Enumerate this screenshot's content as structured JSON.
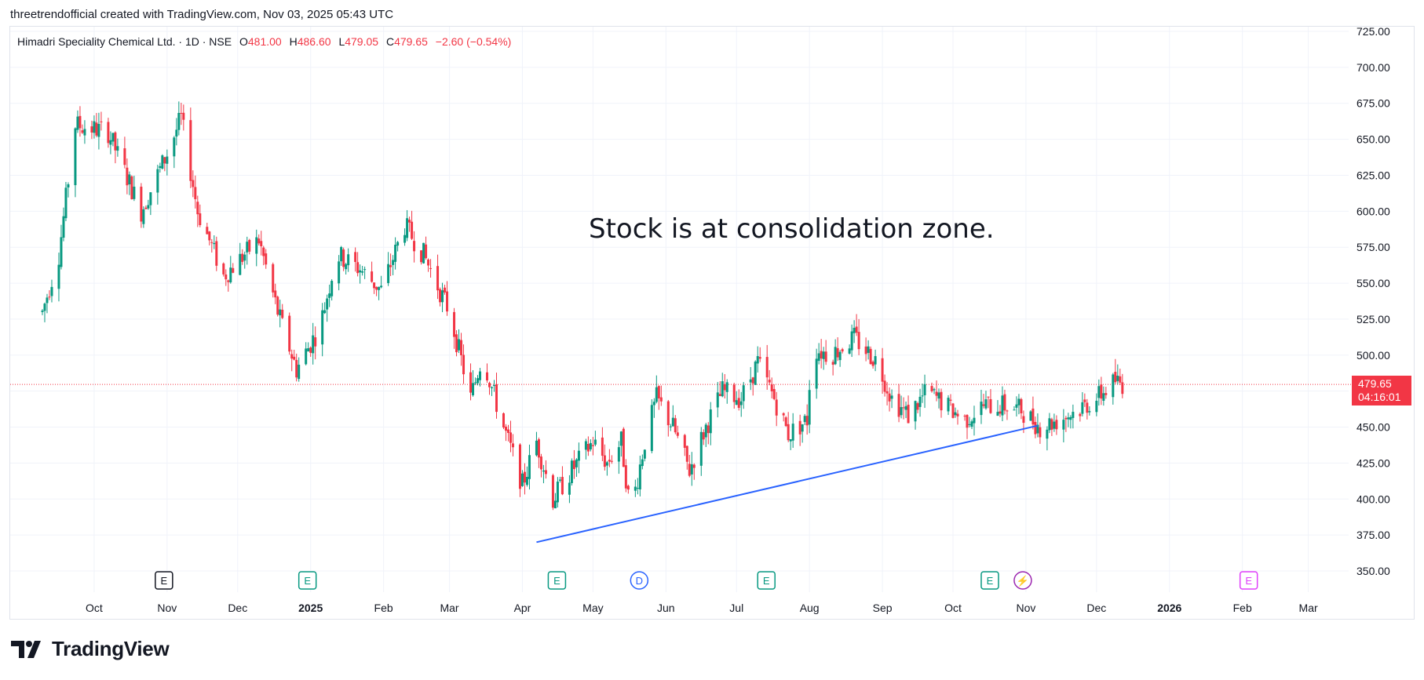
{
  "caption": "threetrendofficial created with TradingView.com, Nov 03, 2025 05:43 UTC",
  "legend": {
    "name": "Himadri Speciality Chemical Ltd. · 1D · NSE",
    "o_label": "O",
    "o": "481.00",
    "h_label": "H",
    "h": "486.60",
    "l_label": "L",
    "l": "479.05",
    "c_label": "C",
    "c": "479.65",
    "change": "−2.60 (−0.54%)"
  },
  "annotation": "Stock is at consolidation zone.",
  "price_tag": {
    "price": "479.65",
    "countdown": "04:16:01"
  },
  "brand": "TradingView",
  "colors": {
    "up": "#089981",
    "down": "#f23645",
    "trendline": "#2962ff",
    "grid": "#f0f3fa"
  },
  "events": [
    {
      "month": "Oct",
      "label": "E",
      "kind": "earnings-past"
    },
    {
      "month": "2025",
      "label": "E",
      "kind": "earnings"
    },
    {
      "month": "Apr",
      "label": "E",
      "kind": "earnings"
    },
    {
      "month": "May",
      "label": "D",
      "kind": "dividend"
    },
    {
      "month": "Jul",
      "label": "E",
      "kind": "earnings"
    },
    {
      "month": "Oct",
      "label": "E",
      "kind": "earnings"
    },
    {
      "month": "Nov",
      "label": "⚡",
      "kind": "split"
    },
    {
      "month": "Feb",
      "label": "E",
      "kind": "earnings-future"
    }
  ],
  "chart_data": {
    "type": "candlestick",
    "title": "",
    "y_ticks": [
      "725.00",
      "700.00",
      "675.00",
      "650.00",
      "625.00",
      "600.00",
      "575.00",
      "550.00",
      "525.00",
      "500.00",
      "475.00",
      "450.00",
      "425.00",
      "400.00",
      "375.00",
      "350.00"
    ],
    "ylim": [
      340,
      730
    ],
    "x_ticks": [
      "Oct",
      "Nov",
      "Dec",
      "2025",
      "Feb",
      "Mar",
      "Apr",
      "May",
      "Jun",
      "Jul",
      "Aug",
      "Sep",
      "Oct",
      "Nov",
      "Dec",
      "2026",
      "Feb",
      "Mar"
    ],
    "x_ticks_bold": [
      "2025",
      "2026"
    ],
    "last_price": 479.65,
    "trendline": {
      "from": {
        "date": "2025-04-07",
        "price": 370
      },
      "to": {
        "date": "2025-11-06",
        "price": 451
      }
    },
    "path_anchors": [
      {
        "date": "2024-09-09",
        "price": 530
      },
      {
        "date": "2024-09-16",
        "price": 570
      },
      {
        "date": "2024-09-23",
        "price": 660
      },
      {
        "date": "2024-10-07",
        "price": 655
      },
      {
        "date": "2024-10-21",
        "price": 600
      },
      {
        "date": "2024-11-01",
        "price": 640
      },
      {
        "date": "2024-11-07",
        "price": 665
      },
      {
        "date": "2024-11-14",
        "price": 600
      },
      {
        "date": "2024-11-25",
        "price": 555
      },
      {
        "date": "2024-12-10",
        "price": 580
      },
      {
        "date": "2024-12-18",
        "price": 530
      },
      {
        "date": "2024-12-26",
        "price": 490
      },
      {
        "date": "2025-01-05",
        "price": 520
      },
      {
        "date": "2025-01-12",
        "price": 570
      },
      {
        "date": "2025-01-22",
        "price": 560
      },
      {
        "date": "2025-01-31",
        "price": 545
      },
      {
        "date": "2025-02-10",
        "price": 590
      },
      {
        "date": "2025-02-18",
        "price": 570
      },
      {
        "date": "2025-03-01",
        "price": 530
      },
      {
        "date": "2025-03-10",
        "price": 470
      },
      {
        "date": "2025-03-15",
        "price": 500
      },
      {
        "date": "2025-03-23",
        "price": 455
      },
      {
        "date": "2025-04-01",
        "price": 410
      },
      {
        "date": "2025-04-07",
        "price": 440
      },
      {
        "date": "2025-04-14",
        "price": 400
      },
      {
        "date": "2025-04-22",
        "price": 420
      },
      {
        "date": "2025-05-01",
        "price": 440
      },
      {
        "date": "2025-05-07",
        "price": 425
      },
      {
        "date": "2025-05-13",
        "price": 440
      },
      {
        "date": "2025-05-17",
        "price": 390
      },
      {
        "date": "2025-05-23",
        "price": 440
      },
      {
        "date": "2025-05-28",
        "price": 470
      },
      {
        "date": "2025-06-04",
        "price": 450
      },
      {
        "date": "2025-06-11",
        "price": 420
      },
      {
        "date": "2025-06-18",
        "price": 450
      },
      {
        "date": "2025-06-25",
        "price": 475
      },
      {
        "date": "2025-07-03",
        "price": 470
      },
      {
        "date": "2025-07-10",
        "price": 495
      },
      {
        "date": "2025-07-17",
        "price": 470
      },
      {
        "date": "2025-07-23",
        "price": 445
      },
      {
        "date": "2025-07-31",
        "price": 455
      },
      {
        "date": "2025-08-02",
        "price": 505
      },
      {
        "date": "2025-08-10",
        "price": 500
      },
      {
        "date": "2025-08-20",
        "price": 512
      },
      {
        "date": "2025-08-30",
        "price": 495
      },
      {
        "date": "2025-09-05",
        "price": 470
      },
      {
        "date": "2025-09-12",
        "price": 458
      },
      {
        "date": "2025-09-20",
        "price": 475
      },
      {
        "date": "2025-09-28",
        "price": 465
      },
      {
        "date": "2025-10-06",
        "price": 455
      },
      {
        "date": "2025-10-14",
        "price": 465
      },
      {
        "date": "2025-10-22",
        "price": 465
      },
      {
        "date": "2025-10-30",
        "price": 462
      },
      {
        "date": "2025-11-07",
        "price": 450
      },
      {
        "date": "2025-11-15",
        "price": 455
      },
      {
        "date": "2025-11-23",
        "price": 462
      },
      {
        "date": "2025-12-01",
        "price": 470
      },
      {
        "date": "2025-12-09",
        "price": 482
      },
      {
        "date": "2025-12-12",
        "price": 479.65
      }
    ]
  }
}
